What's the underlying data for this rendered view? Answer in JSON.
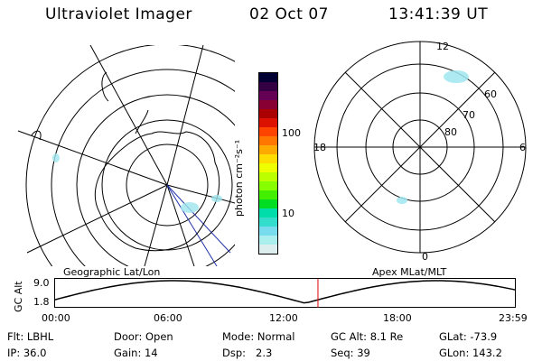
{
  "header": {
    "instrument": "Ultraviolet Imager",
    "date": "02 Oct 07",
    "time": "13:41:39 UT"
  },
  "colorbar": {
    "unit_label": "photon cm⁻²s⁻¹",
    "ticks": [
      "100",
      "10"
    ],
    "colors": [
      "#000033",
      "#330044",
      "#660055",
      "#880033",
      "#aa0000",
      "#dd1100",
      "#ff4400",
      "#ff7700",
      "#ffaa00",
      "#ffdd00",
      "#eeff00",
      "#bbff00",
      "#88ff00",
      "#44ee00",
      "#00dd22",
      "#00ddaa",
      "#33ddcc",
      "#77ddee",
      "#aaeeee",
      "#ddeeee"
    ]
  },
  "left_map": {
    "caption": "Geographic Lat/Lon"
  },
  "right_map": {
    "caption": "Apex MLat/MLT",
    "lat_labels": [
      "80",
      "70",
      "60"
    ],
    "mlt_labels": {
      "top": "12",
      "bottom": "0",
      "left": "18",
      "right": "6"
    }
  },
  "timeline": {
    "ylabel": "GC Alt",
    "y_ticks": [
      "9.0",
      "1.8"
    ],
    "x_ticks": [
      "00:00",
      "06:00",
      "12:00",
      "18:00",
      "23:59"
    ],
    "marker_time": "13:41",
    "marker_color": "#dd0000"
  },
  "status": {
    "row1": [
      {
        "label": "Flt:",
        "value": "LBHL"
      },
      {
        "label": "Door:",
        "value": "Open"
      },
      {
        "label": "Mode:",
        "value": "Normal"
      },
      {
        "label": "GC Alt:",
        "value": "8.1 Re"
      },
      {
        "label": "GLat:",
        "value": "-73.9"
      }
    ],
    "row2": [
      {
        "label": "IP:",
        "value": "36.0"
      },
      {
        "label": "Gain:",
        "value": "14"
      },
      {
        "label": "Dsp:",
        "value": "2.3"
      },
      {
        "label": "Seq:",
        "value": "39"
      },
      {
        "label": "GLon:",
        "value": "143.2"
      }
    ]
  }
}
